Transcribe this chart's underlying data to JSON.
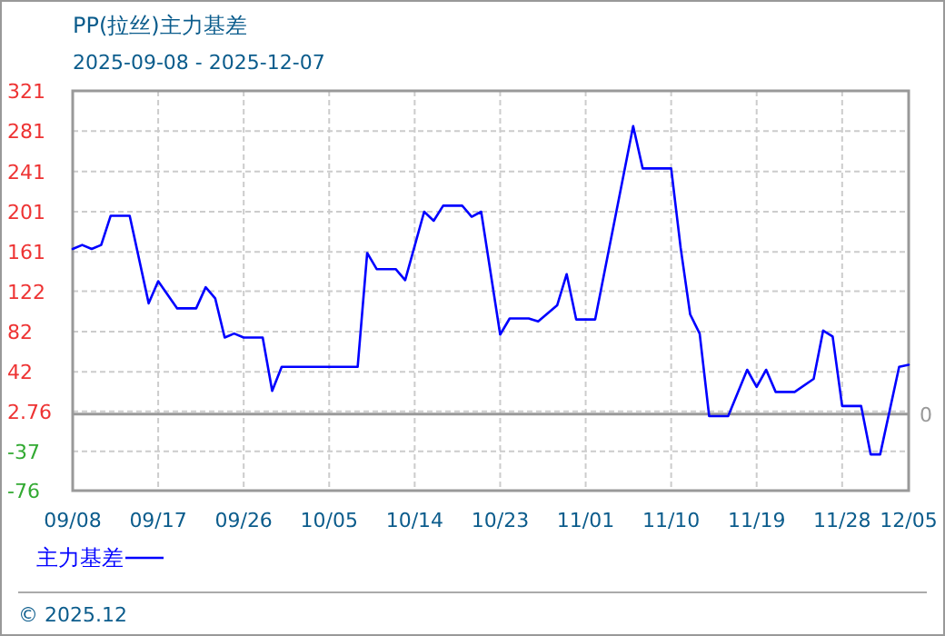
{
  "chart_data": {
    "type": "line",
    "title": "PP(拉丝)主力基差",
    "subtitle": "2025-09-08 - 2025-12-07",
    "x": [
      "--09-08",
      "--09-09",
      "--09-10",
      "--09-11",
      "--09-12",
      "--09-14",
      "--09-16",
      "--09-17",
      "--09-19",
      "--09-21",
      "--09-22",
      "--09-23",
      "--09-24",
      "--09-25",
      "--09-26",
      "--09-28",
      "--09-29",
      "--09-30",
      "--10-08",
      "--10-09",
      "--10-10",
      "--10-12",
      "--10-13",
      "--10-15",
      "--10-16",
      "--10-17",
      "--10-19",
      "--10-20",
      "--10-21",
      "--10-23",
      "--10-24",
      "--10-26",
      "--10-27",
      "--10-29",
      "--10-30",
      "--10-31",
      "--11-02",
      "--11-06",
      "--11-07",
      "--11-10",
      "--11-11",
      "--11-12",
      "--11-13",
      "--11-14",
      "--11-16",
      "--11-18",
      "--11-19",
      "--11-20",
      "--11-21",
      "--11-23",
      "--11-25",
      "--11-26",
      "--11-27",
      "--11-28",
      "--11-30",
      "--12-01",
      "--12-02",
      "--12-04",
      "--12-05"
    ],
    "series": [
      {
        "name": "主力基差",
        "color": "#0000ff",
        "values": [
          164,
          168,
          164,
          168,
          197,
          197,
          110,
          132,
          105,
          105,
          126,
          115,
          76,
          80,
          76,
          76,
          23,
          47,
          47,
          160,
          144,
          144,
          133,
          201,
          192,
          207,
          207,
          196,
          201,
          79,
          95,
          95,
          92,
          108,
          139,
          94,
          94,
          286,
          244,
          244,
          165,
          99,
          80,
          -2,
          -2,
          44,
          27,
          44,
          22,
          22,
          35,
          83,
          77,
          8,
          8,
          -40,
          -40,
          47,
          49
        ]
      }
    ],
    "xlim": [
      "--09-08",
      "--12-05"
    ],
    "xticks": [
      {
        "value": "--09-08",
        "label": "09/08"
      },
      {
        "value": "--09-17",
        "label": "09/17"
      },
      {
        "value": "--09-26",
        "label": "09/26"
      },
      {
        "value": "--10-05",
        "label": "10/05"
      },
      {
        "value": "--10-14",
        "label": "10/14"
      },
      {
        "value": "--10-23",
        "label": "10/23"
      },
      {
        "value": "--11-01",
        "label": "11/01"
      },
      {
        "value": "--11-10",
        "label": "11/10"
      },
      {
        "value": "--11-19",
        "label": "11/19"
      },
      {
        "value": "--11-28",
        "label": "11/28"
      },
      {
        "value": "--12-05",
        "label": "12/05"
      }
    ],
    "ylim": [
      -76,
      321
    ],
    "yticks": [
      321,
      281,
      241,
      201,
      161,
      122,
      82,
      42,
      2.76,
      -37,
      -76
    ],
    "grid": true,
    "legend": "bottom left",
    "ref_lines": [
      {
        "axis": "y",
        "value": 0,
        "label": "0",
        "color": "#999999"
      }
    ],
    "annotations": [
      "© 2025.12"
    ]
  }
}
